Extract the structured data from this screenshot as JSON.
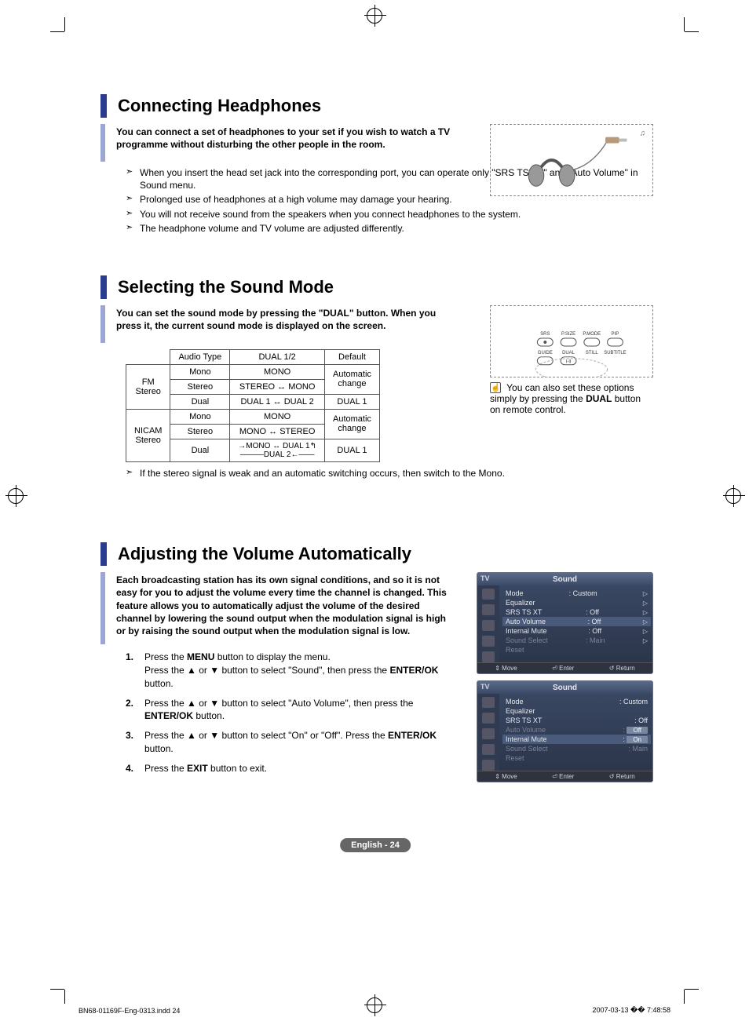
{
  "sections": {
    "headphones": {
      "title": "Connecting Headphones",
      "intro": "You can connect a set of headphones to your set if you wish to watch a TV programme without disturbing the other people in the room.",
      "bullets": [
        "When you insert the head set jack into the corresponding port, you can operate only \"SRS TS XT\" and \"Auto Volume\" in Sound menu.",
        "Prolonged use of headphones at a high volume may damage your hearing.",
        "You will not receive sound from the speakers when you connect headphones to the system.",
        "The headphone volume and TV volume  are adjusted differently."
      ]
    },
    "soundmode": {
      "title": "Selecting the Sound Mode",
      "intro": "You can set the sound mode by pressing the \"DUAL\" button. When you press it, the current sound mode is displayed on the screen.",
      "table": {
        "headers": [
          "",
          "Audio Type",
          "DUAL 1/2",
          "Default"
        ],
        "rows": [
          {
            "group": "FM Stereo",
            "audio": "Mono",
            "dual": "MONO",
            "def": "Automatic change",
            "def_rowspan": 2
          },
          {
            "group": "",
            "audio": "Stereo",
            "dual": "STEREO ↔ MONO",
            "def": ""
          },
          {
            "group": "",
            "audio": "Dual",
            "dual": "DUAL 1 ↔ DUAL 2",
            "def": "DUAL 1"
          },
          {
            "group": "NICAM Stereo",
            "audio": "Mono",
            "dual": "MONO",
            "def": "Automatic change",
            "def_rowspan": 2
          },
          {
            "group": "",
            "audio": "Stereo",
            "dual": "MONO ↔ STEREO",
            "def": ""
          },
          {
            "group": "",
            "audio": "Dual",
            "dual": "→MONO ↔ DUAL 1↰\n———DUAL 2←——",
            "def": "DUAL 1"
          }
        ]
      },
      "note_after": "If the stereo signal is weak and an automatic switching occurs, then switch to the Mono.",
      "remote_note": "You can also set these options simply by pressing the DUAL button on remote control.",
      "remote_labels": [
        "SRS",
        "P.SIZE",
        "P.MODE",
        "PIP",
        "GUIDE",
        "DUAL",
        "STILL",
        "SUBTITLE"
      ]
    },
    "autovol": {
      "title": "Adjusting the Volume Automatically",
      "intro": "Each broadcasting station has its own signal conditions, and so it is not easy for you to adjust the volume every time the channel is changed. This feature allows you to automatically adjust the volume of the desired channel by lowering the sound output when the modulation signal is high or by raising the sound output when the modulation signal is low.",
      "steps": [
        "Press the MENU button to display the menu.\nPress the ▲ or ▼ button to select \"Sound\", then press the ENTER/OK button.",
        "Press the ▲ or ▼ button to select \"Auto Volume\", then press the ENTER/OK button.",
        "Press the ▲ or ▼ button to select \"On\" or \"Off\". Press the ENTER/OK button.",
        "Press the EXIT button to exit."
      ],
      "menu1": {
        "title": "Sound",
        "tv": "TV",
        "rows": [
          {
            "label": "Mode",
            "val": ": Custom",
            "arrow": true
          },
          {
            "label": "Equalizer",
            "val": "",
            "arrow": true
          },
          {
            "label": "SRS TS XT",
            "val": ": Off",
            "arrow": true
          },
          {
            "label": "Auto Volume",
            "val": ": Off",
            "arrow": true,
            "sel": true
          },
          {
            "label": "Internal Mute",
            "val": ": Off",
            "arrow": true
          },
          {
            "label": "Sound Select",
            "val": ": Main",
            "arrow": true,
            "dim": true
          },
          {
            "label": "Reset",
            "val": "",
            "arrow": false,
            "dim": true
          }
        ],
        "footer": [
          "⇕ Move",
          "⏎ Enter",
          "↺ Return"
        ]
      },
      "menu2": {
        "title": "Sound",
        "tv": "TV",
        "rows": [
          {
            "label": "Mode",
            "val": ": Custom"
          },
          {
            "label": "Equalizer",
            "val": ""
          },
          {
            "label": "SRS TS XT",
            "val": ": Off"
          },
          {
            "label": "Auto Volume",
            "val": ":",
            "box": "Off",
            "dim": true,
            "sel": false
          },
          {
            "label": "Internal Mute",
            "val": ":",
            "box": "On",
            "sel": true
          },
          {
            "label": "Sound Select",
            "val": ": Main",
            "dim": true
          },
          {
            "label": "Reset",
            "val": "",
            "dim": true
          }
        ],
        "footer": [
          "⇕ Move",
          "⏎ Enter",
          "↺ Return"
        ]
      }
    }
  },
  "page_number": "English - 24",
  "footer_left": "BN68-01169F-Eng-0313.indd   24",
  "footer_right": "2007-03-13   �� 7:48:58",
  "colors": {
    "title_bar": "#2a3c8f",
    "intro_bar": "#9aa6d4",
    "menu_bg_top": "#3b4a66",
    "menu_bg_bottom": "#2a3347"
  }
}
